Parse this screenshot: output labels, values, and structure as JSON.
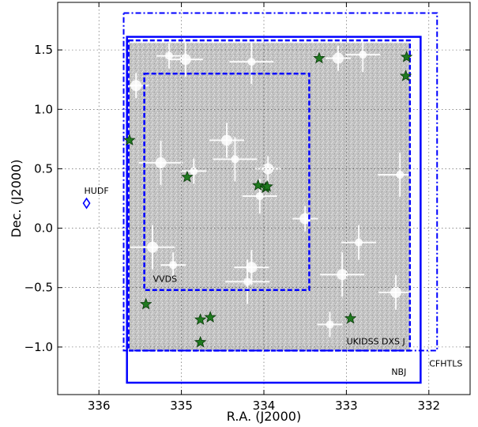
{
  "chart_data": {
    "type": "scatter",
    "title": "",
    "xlabel": "R.A. (J2000)",
    "ylabel": "Dec. (J2000)",
    "xlim": [
      336.5,
      331.5
    ],
    "ylim": [
      -1.4,
      1.9
    ],
    "x_ticks": [
      "336",
      "335",
      "334",
      "333",
      "332"
    ],
    "y_ticks": [
      "−1.0",
      "−0.5",
      "0.0",
      "0.5",
      "1.0",
      "1.5"
    ],
    "grid": true,
    "fields": [
      {
        "name": "CFHTLS",
        "style": "dash-dot",
        "ra_min": 331.9,
        "ra_max": 335.7,
        "dec_min": -1.03,
        "dec_max": 1.81,
        "color": "#0000ff"
      },
      {
        "name": "NBJ",
        "style": "solid",
        "ra_min": 332.1,
        "ra_max": 335.66,
        "dec_min": -1.3,
        "dec_max": 1.61,
        "color": "#0000ff"
      },
      {
        "name": "UKIDSS DXS J",
        "style": "dashed",
        "ra_min": 332.23,
        "ra_max": 335.64,
        "dec_min": -1.03,
        "dec_max": 1.58,
        "color": "#0000ff"
      },
      {
        "name": "VVDS",
        "style": "dashed",
        "ra_min": 333.45,
        "ra_max": 335.45,
        "dec_min": -0.52,
        "dec_max": 1.3,
        "color": "#0000ff"
      }
    ],
    "coverage": {
      "ra_min": 332.23,
      "ra_max": 335.64,
      "dec_min": -1.03,
      "dec_max": 1.56,
      "color": "#c8c8c8"
    },
    "series": [
      {
        "marker": "star",
        "color": "#1f7a1f",
        "points": [
          {
            "ra": 335.63,
            "dec": 0.74
          },
          {
            "ra": 334.93,
            "dec": 0.43
          },
          {
            "ra": 334.07,
            "dec": 0.36
          },
          {
            "ra": 333.98,
            "dec": 0.34
          },
          {
            "ra": 333.96,
            "dec": 0.35
          },
          {
            "ra": 333.33,
            "dec": 1.43
          },
          {
            "ra": 332.27,
            "dec": 1.44
          },
          {
            "ra": 332.28,
            "dec": 1.28
          },
          {
            "ra": 335.43,
            "dec": -0.64
          },
          {
            "ra": 334.77,
            "dec": -0.77
          },
          {
            "ra": 334.65,
            "dec": -0.75
          },
          {
            "ra": 334.77,
            "dec": -0.96
          },
          {
            "ra": 332.95,
            "dec": -0.76
          }
        ]
      },
      {
        "name": "HUDF",
        "marker": "diamond",
        "color": "#0000ff",
        "points": [
          {
            "ra": 336.15,
            "dec": 0.21
          }
        ]
      }
    ],
    "bright_stars": [
      {
        "ra": 335.15,
        "dec": 1.45
      },
      {
        "ra": 334.95,
        "dec": 1.42
      },
      {
        "ra": 334.15,
        "dec": 1.4
      },
      {
        "ra": 333.1,
        "dec": 1.43
      },
      {
        "ra": 332.8,
        "dec": 1.46
      },
      {
        "ra": 335.25,
        "dec": 0.55
      },
      {
        "ra": 334.85,
        "dec": 0.48
      },
      {
        "ra": 334.45,
        "dec": 0.74
      },
      {
        "ra": 334.35,
        "dec": 0.58
      },
      {
        "ra": 333.95,
        "dec": 0.5
      },
      {
        "ra": 334.05,
        "dec": 0.27
      },
      {
        "ra": 335.35,
        "dec": -0.16
      },
      {
        "ra": 335.1,
        "dec": -0.31
      },
      {
        "ra": 334.15,
        "dec": -0.33
      },
      {
        "ra": 334.2,
        "dec": -0.45
      },
      {
        "ra": 333.5,
        "dec": 0.08
      },
      {
        "ra": 332.85,
        "dec": -0.12
      },
      {
        "ra": 333.05,
        "dec": -0.39
      },
      {
        "ra": 333.2,
        "dec": -0.81
      },
      {
        "ra": 332.4,
        "dec": -0.54
      },
      {
        "ra": 332.35,
        "dec": 0.45
      },
      {
        "ra": 335.55,
        "dec": 1.2
      }
    ]
  }
}
